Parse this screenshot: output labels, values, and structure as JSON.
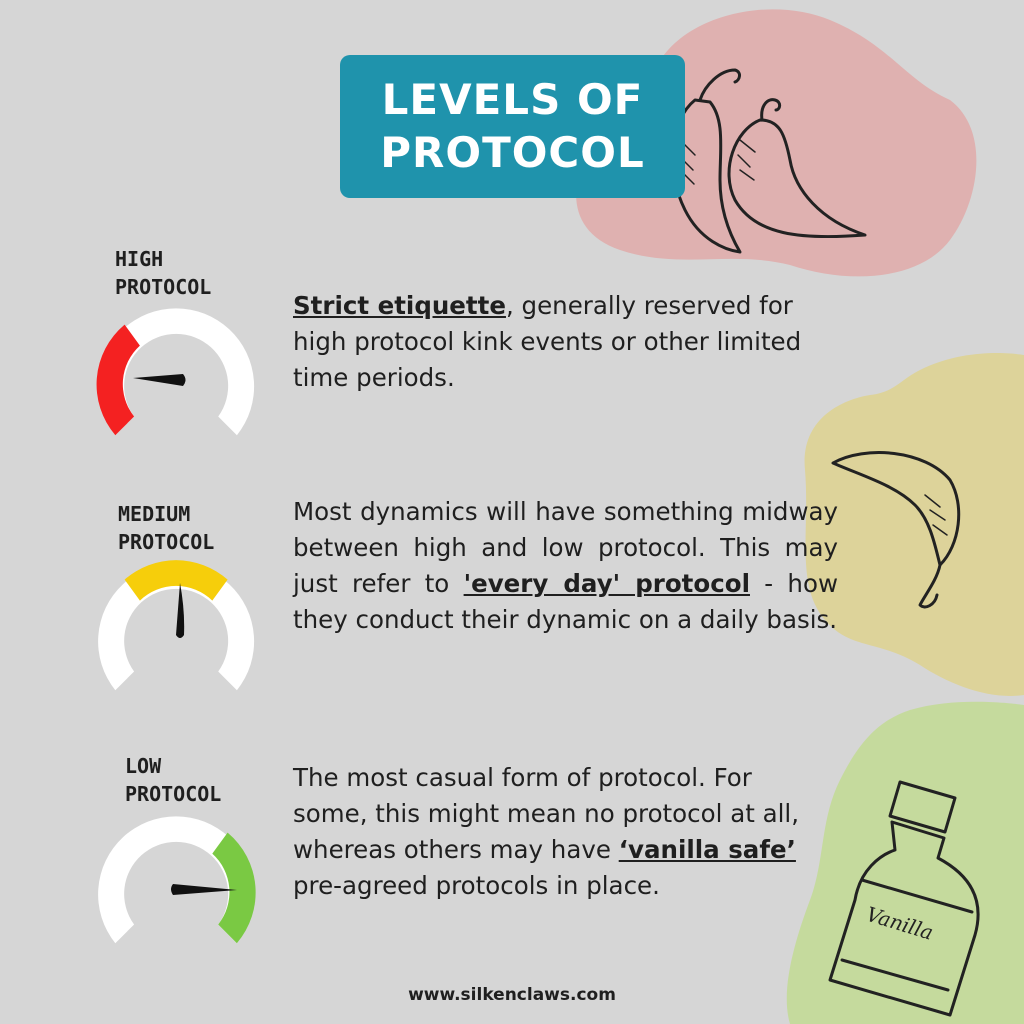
{
  "title": {
    "line1": "LEVELS OF",
    "line2": "PROTOCOL"
  },
  "colors": {
    "background": "#d6d6d6",
    "title_box": "#1f93ac",
    "blob_pink": "#dfb1b0",
    "blob_yellow": "#ddd39a",
    "blob_green": "#c5da9d",
    "gauge_track": "#ffffff",
    "high": "#f42121",
    "medium": "#f6ce0b",
    "low": "#7ac943",
    "needle": "#111111"
  },
  "levels": [
    {
      "label_line1": "HIGH",
      "label_line2": "PROTOCOL",
      "gauge_level": "high",
      "desc_bold": "Strict etiquette",
      "desc_rest": ", generally reserved for high protocol kink events or other limited time periods."
    },
    {
      "label_line1": "MEDIUM",
      "label_line2": "PROTOCOL",
      "gauge_level": "medium",
      "desc_before": "Most dynamics will have something midway between high and low protocol. This may just refer to ",
      "desc_bold": "'every day' protocol",
      "desc_after": " - how they conduct their dynamic on a daily basis."
    },
    {
      "label_line1": "LOW",
      "label_line2": "PROTOCOL",
      "gauge_level": "low",
      "desc_before": "The most casual form of protocol. For some, this might mean no protocol at all, whereas others may have ",
      "desc_bold": "‘vanilla safe’",
      "desc_after": " pre-agreed protocols in place."
    }
  ],
  "illustrations": {
    "top": "chili-peppers-icon",
    "middle": "chili-pepper-icon",
    "bottom": "vanilla-bottle-icon",
    "bottle_label": "Vanilla"
  },
  "footer": {
    "url": "www.silkenclaws.com"
  }
}
